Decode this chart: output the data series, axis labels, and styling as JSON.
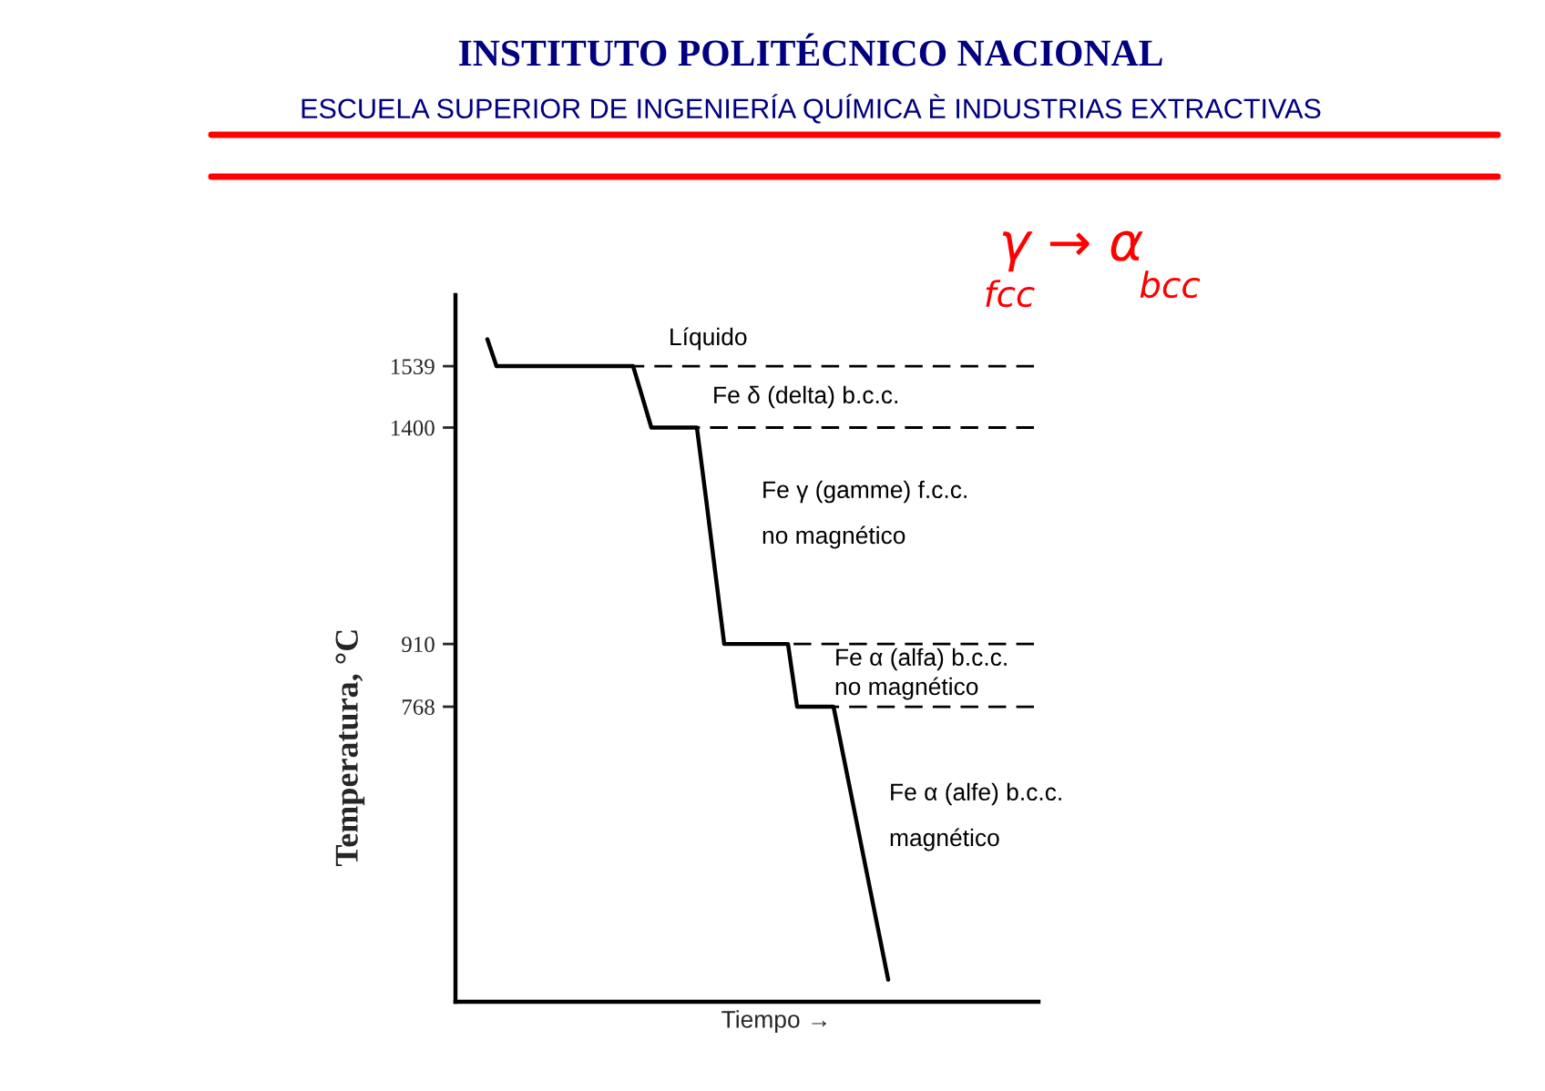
{
  "chart_data": {
    "type": "line",
    "title": "INSTITUTO POLITÉCNICO NACIONAL",
    "subtitle": "ESCUELA SUPERIOR DE INGENIERÍA QUÍMICA È INDUSTRIAS EXTRACTIVAS",
    "xlabel": "Tiempo →",
    "ylabel": "Temperatura, °C",
    "categories": [
      null,
      null,
      null,
      null,
      null,
      null,
      null,
      null,
      null,
      null,
      null,
      null,
      null,
      null,
      null,
      null,
      null,
      null,
      null,
      null,
      null,
      null,
      null,
      null,
      null,
      null,
      null,
      null,
      null,
      null,
      null,
      null,
      null,
      null,
      null,
      null,
      null,
      null,
      null,
      null,
      null,
      null,
      null,
      null,
      null,
      null,
      null,
      null,
      null,
      null,
      null,
      null,
      null,
      null,
      null,
      null,
      null,
      null,
      null,
      null,
      null,
      null,
      null,
      null
    ],
    "ylim": [
      100,
      1700
    ],
    "yticks": [
      768,
      910,
      1400,
      1539
    ],
    "tick_labels": "y",
    "series": [
      {
        "color": "#000000",
        "values": [
          null,
          null,
          null,
          1600,
          1539,
          1539,
          1539,
          1539,
          1539,
          1539,
          1539,
          1539,
          1539,
          1539,
          1539,
          1539,
          1539,
          1539,
          1539,
          1539,
          1470,
          1400,
          1400,
          1400,
          1400,
          1400,
          1400,
          1240,
          1075,
          910,
          910,
          910,
          910,
          910,
          910,
          910,
          910,
          768,
          768,
          768,
          768,
          768,
          665,
          562,
          459,
          356,
          253,
          150,
          null,
          null,
          null,
          null,
          null,
          null,
          null,
          null,
          null,
          null,
          null,
          null,
          null,
          null,
          null,
          null
        ]
      },
      {
        "color": "#000000",
        "line_style": "dashed",
        "values": [
          null,
          null,
          null,
          null,
          null,
          null,
          null,
          null,
          null,
          null,
          null,
          null,
          null,
          null,
          null,
          null,
          null,
          null,
          null,
          1539,
          1539,
          1539,
          1539,
          1539,
          1539,
          1539,
          1539,
          1539,
          1539,
          1539,
          1539,
          1539,
          1539,
          1539,
          1539,
          1539,
          1539,
          1539,
          1539,
          1539,
          1539,
          1539,
          1539,
          1539,
          1539,
          1539,
          1539,
          1539,
          1539,
          1539,
          1539,
          1539,
          1539,
          1539,
          1539,
          1539,
          1539,
          1539,
          1539,
          1539,
          1539,
          1539,
          1539,
          1539
        ]
      },
      {
        "color": "#000000",
        "line_style": "dashed",
        "values": [
          null,
          null,
          null,
          null,
          null,
          null,
          null,
          null,
          null,
          null,
          null,
          null,
          null,
          null,
          null,
          null,
          null,
          null,
          null,
          null,
          null,
          null,
          null,
          null,
          null,
          null,
          1400,
          1400,
          1400,
          1400,
          1400,
          1400,
          1400,
          1400,
          1400,
          1400,
          1400,
          1400,
          1400,
          1400,
          1400,
          1400,
          1400,
          1400,
          1400,
          1400,
          1400,
          1400,
          1400,
          1400,
          1400,
          1400,
          1400,
          1400,
          1400,
          1400,
          1400,
          1400,
          1400,
          1400,
          1400,
          1400,
          1400,
          1400
        ]
      },
      {
        "color": "#000000",
        "line_style": "dashed",
        "values": [
          null,
          null,
          null,
          null,
          null,
          null,
          null,
          null,
          null,
          null,
          null,
          null,
          null,
          null,
          null,
          null,
          null,
          null,
          null,
          null,
          null,
          null,
          null,
          null,
          null,
          null,
          null,
          null,
          null,
          null,
          null,
          null,
          null,
          null,
          null,
          null,
          910,
          910,
          910,
          910,
          910,
          910,
          910,
          910,
          910,
          910,
          910,
          910,
          910,
          910,
          910,
          910,
          910,
          910,
          910,
          910,
          910,
          910,
          910,
          910,
          910,
          910,
          910,
          910
        ]
      },
      {
        "color": "#000000",
        "line_style": "dashed",
        "values": [
          null,
          null,
          null,
          null,
          null,
          null,
          null,
          null,
          null,
          null,
          null,
          null,
          null,
          null,
          null,
          null,
          null,
          null,
          null,
          null,
          null,
          null,
          null,
          null,
          null,
          null,
          null,
          null,
          null,
          null,
          null,
          null,
          null,
          null,
          null,
          null,
          null,
          null,
          null,
          null,
          null,
          768,
          768,
          768,
          768,
          768,
          768,
          768,
          768,
          768,
          768,
          768,
          768,
          768,
          768,
          768,
          768,
          768,
          768,
          768,
          768,
          768,
          768,
          768
        ]
      }
    ],
    "annotations": [
      "Líquido",
      "Fe δ (delta) b.c.c.",
      "Fe γ (gamme) f.c.c.",
      "no magnético",
      "Fe α (alfa) b.c.c.",
      "no magnético",
      "Fe α (alfe) b.c.c.",
      "magnético",
      "γ → α",
      "fcc",
      "bcc"
    ]
  }
}
